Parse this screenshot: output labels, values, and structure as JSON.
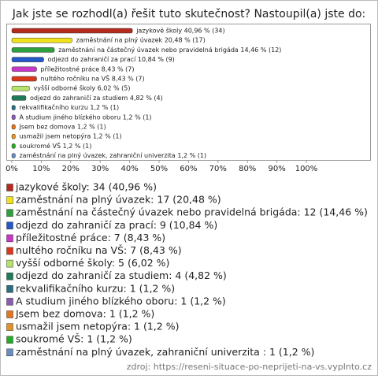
{
  "chart_data": {
    "type": "bar",
    "orientation": "horizontal",
    "title": "Jak jste se rozhodl(a) řešit tuto skutečnost? Nastoupil(a) jste do:",
    "categories": [
      "jazykové školy",
      "zaměstnání na plný úvazek",
      "zaměstnání na částečný úvazek nebo pravidelná brigáda",
      "odjezd do zahraničí za prací",
      "příležitostné práce",
      "nultého ročníku na VŠ",
      "vyšší odborné školy",
      "odjezd do zahraničí za studiem",
      "rekvalifikačního kurzu",
      "A studium jiného blízkého oboru",
      "Jsem bez domova",
      "usmažil jsem netopýra",
      "soukromé VŠ",
      "zaměstnání na plný úvazek, zahraniční univerzita"
    ],
    "values": [
      40.96,
      20.48,
      14.46,
      10.84,
      8.43,
      8.43,
      6.02,
      4.82,
      1.2,
      1.2,
      1.2,
      1.2,
      1.2,
      1.2
    ],
    "value_labels": [
      "jazykové školy 40,96 % (34)",
      "zaměstnání na plný úvazek 20,48 % (17)",
      "zaměstnání na částečný úvazek nebo pravidelná brigáda 14,46 % (12)",
      "odjezd do zahraničí za prací 10,84 % (9)",
      "příležitostné práce 8,43 % (7)",
      "nultého ročníku na VŠ 8,43 % (7)",
      "vyšší odborné školy 6,02 % (5)",
      "odjezd do zahraničí za studiem 4,82 % (4)",
      "rekvalifikačního kurzu 1,2 % (1)",
      "A studium jiného blízkého oboru 1,2 % (1)",
      "Jsem bez domova 1,2 % (1)",
      "usmažil jsem netopýra 1,2 % (1)",
      "soukromé VŠ 1,2 % (1)",
      "zaměstnání na plný úvazek, zahraniční univerzita  1,2 % (1)"
    ],
    "legend_labels": [
      "jazykové školy: 34 (40,96 %)",
      "zaměstnání na plný úvazek: 17 (20,48 %)",
      "zaměstnání na částečný úvazek nebo pravidelná brigáda: 12 (14,46 %)",
      "odjezd do zahraničí za prací: 9 (10,84 %)",
      "příležitostné práce: 7 (8,43 %)",
      "nultého ročníku na VŠ: 7 (8,43 %)",
      "vyšší odborné školy: 5 (6,02 %)",
      "odjezd do zahraničí za studiem: 4 (4,82 %)",
      "rekvalifikačního kurzu: 1 (1,2 %)",
      "A studium jiného blízkého oboru: 1 (1,2 %)",
      "Jsem bez domova: 1 (1,2 %)",
      "usmažil jsem netopýra: 1 (1,2 %)",
      "soukromé VŠ: 1 (1,2 %)",
      "zaměstnání na plný úvazek, zahraniční univerzita : 1 (1,2 %)"
    ],
    "colors": [
      "#b52a1e",
      "#f2e21a",
      "#2f9e3c",
      "#2457c8",
      "#c837c8",
      "#d9391a",
      "#b5e26a",
      "#1f7a58",
      "#2a6e80",
      "#8a5cb0",
      "#e0761e",
      "#e3922a",
      "#27aa27",
      "#6a8cc0"
    ],
    "xlim": [
      0,
      100
    ],
    "xticks": [
      {
        "value": 0,
        "label": "0%"
      },
      {
        "value": 10,
        "label": "10%"
      },
      {
        "value": 20,
        "label": "20%"
      },
      {
        "value": 30,
        "label": "30%"
      },
      {
        "value": 40,
        "label": "40%"
      },
      {
        "value": 50,
        "label": "50%"
      },
      {
        "value": 60,
        "label": "60%"
      },
      {
        "value": 70,
        "label": "70%"
      },
      {
        "value": 80,
        "label": "80%"
      },
      {
        "value": 90,
        "label": "90%"
      },
      {
        "value": 100,
        "label": "100%"
      }
    ],
    "source": "zdroj: https://reseni-situace-po-neprijeti-na-vs.vyplnto.cz"
  }
}
